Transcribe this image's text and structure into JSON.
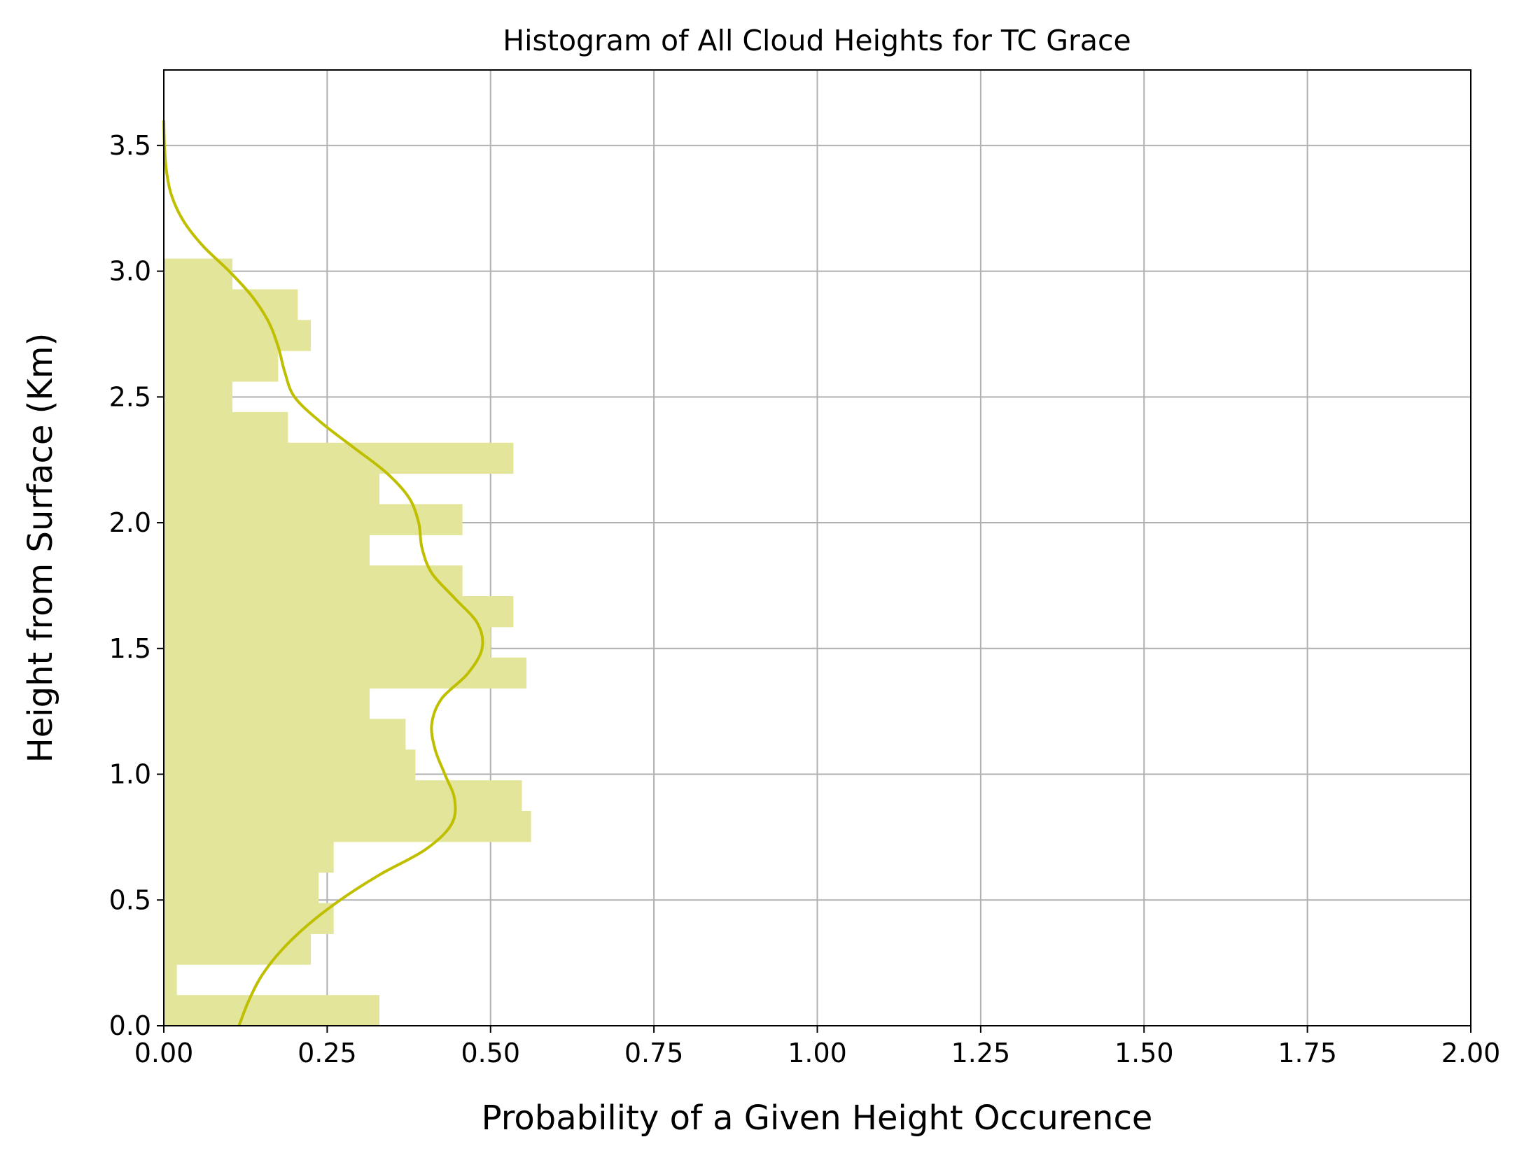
{
  "chart_data": {
    "type": "bar",
    "orientation": "horizontal",
    "title": "Histogram of All Cloud Heights for TC Grace",
    "xlabel": "Probability of a Given Height Occurence",
    "ylabel": "Height from Surface (Km)",
    "xlim": [
      0,
      2.0
    ],
    "ylim": [
      0,
      3.8
    ],
    "xticks": [
      "0.00",
      "0.25",
      "0.50",
      "0.75",
      "1.00",
      "1.25",
      "1.50",
      "1.75",
      "2.00"
    ],
    "yticks": [
      "0.0",
      "0.5",
      "1.0",
      "1.5",
      "2.0",
      "2.5",
      "3.0",
      "3.5"
    ],
    "grid": true,
    "colors": {
      "bars": "#e3e59b",
      "kde": "#bfbf00"
    },
    "bin_width_km": 0.122,
    "bins": [
      {
        "y0": 0.0,
        "value": 0.33
      },
      {
        "y0": 0.122,
        "value": 0.02
      },
      {
        "y0": 0.244,
        "value": 0.225
      },
      {
        "y0": 0.366,
        "value": 0.26
      },
      {
        "y0": 0.488,
        "value": 0.237
      },
      {
        "y0": 0.61,
        "value": 0.26
      },
      {
        "y0": 0.732,
        "value": 0.562
      },
      {
        "y0": 0.854,
        "value": 0.548
      },
      {
        "y0": 0.976,
        "value": 0.385
      },
      {
        "y0": 1.098,
        "value": 0.37
      },
      {
        "y0": 1.22,
        "value": 0.315
      },
      {
        "y0": 1.342,
        "value": 0.555
      },
      {
        "y0": 1.464,
        "value": 0.5
      },
      {
        "y0": 1.586,
        "value": 0.535
      },
      {
        "y0": 1.708,
        "value": 0.457
      },
      {
        "y0": 1.83,
        "value": 0.315
      },
      {
        "y0": 1.952,
        "value": 0.457
      },
      {
        "y0": 2.074,
        "value": 0.33
      },
      {
        "y0": 2.196,
        "value": 0.535
      },
      {
        "y0": 2.318,
        "value": 0.19
      },
      {
        "y0": 2.44,
        "value": 0.105
      },
      {
        "y0": 2.562,
        "value": 0.175
      },
      {
        "y0": 2.684,
        "value": 0.225
      },
      {
        "y0": 2.806,
        "value": 0.205
      },
      {
        "y0": 2.928,
        "value": 0.105
      }
    ],
    "kde": [
      {
        "y": 0.0,
        "x": 0.115
      },
      {
        "y": 0.1,
        "x": 0.13
      },
      {
        "y": 0.2,
        "x": 0.15
      },
      {
        "y": 0.3,
        "x": 0.18
      },
      {
        "y": 0.4,
        "x": 0.22
      },
      {
        "y": 0.5,
        "x": 0.27
      },
      {
        "y": 0.6,
        "x": 0.33
      },
      {
        "y": 0.7,
        "x": 0.4
      },
      {
        "y": 0.8,
        "x": 0.44
      },
      {
        "y": 0.9,
        "x": 0.445
      },
      {
        "y": 1.0,
        "x": 0.43
      },
      {
        "y": 1.1,
        "x": 0.415
      },
      {
        "y": 1.2,
        "x": 0.41
      },
      {
        "y": 1.3,
        "x": 0.425
      },
      {
        "y": 1.4,
        "x": 0.465
      },
      {
        "y": 1.5,
        "x": 0.487
      },
      {
        "y": 1.6,
        "x": 0.48
      },
      {
        "y": 1.7,
        "x": 0.445
      },
      {
        "y": 1.8,
        "x": 0.41
      },
      {
        "y": 1.9,
        "x": 0.395
      },
      {
        "y": 2.0,
        "x": 0.39
      },
      {
        "y": 2.1,
        "x": 0.375
      },
      {
        "y": 2.2,
        "x": 0.34
      },
      {
        "y": 2.3,
        "x": 0.29
      },
      {
        "y": 2.4,
        "x": 0.24
      },
      {
        "y": 2.5,
        "x": 0.2
      },
      {
        "y": 2.6,
        "x": 0.185
      },
      {
        "y": 2.7,
        "x": 0.175
      },
      {
        "y": 2.8,
        "x": 0.16
      },
      {
        "y": 2.9,
        "x": 0.135
      },
      {
        "y": 3.0,
        "x": 0.1
      },
      {
        "y": 3.1,
        "x": 0.06
      },
      {
        "y": 3.2,
        "x": 0.03
      },
      {
        "y": 3.3,
        "x": 0.012
      },
      {
        "y": 3.4,
        "x": 0.004
      },
      {
        "y": 3.5,
        "x": 0.001
      },
      {
        "y": 3.6,
        "x": 0.0
      }
    ]
  }
}
